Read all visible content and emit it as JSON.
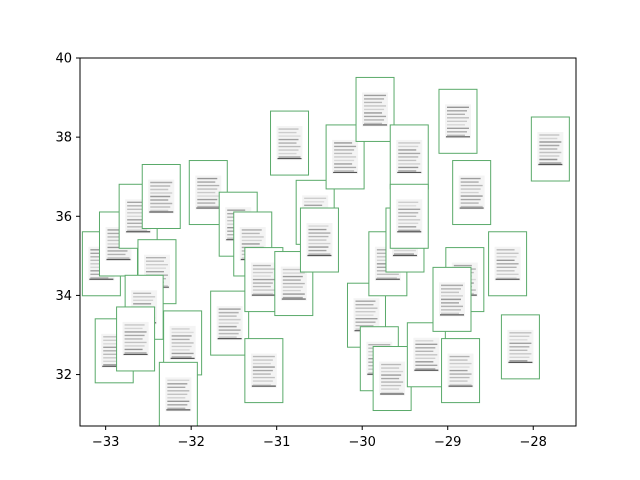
{
  "chart_data": {
    "type": "scatter",
    "title": "",
    "xlabel": "",
    "ylabel": "",
    "xlim": [
      -33.3,
      -27.5
    ],
    "ylim": [
      30.7,
      40.0
    ],
    "grid": false,
    "legend": "none",
    "marker": "image-thumbnail",
    "marker_edge_color": "#5aaa6a",
    "x_ticks": [
      -33,
      -32,
      -31,
      -30,
      -29,
      -28
    ],
    "x_tick_labels": [
      "−33",
      "−32",
      "−31",
      "−30",
      "−29",
      "−28"
    ],
    "y_ticks": [
      32,
      34,
      36,
      38,
      40
    ],
    "y_tick_labels": [
      "32",
      "34",
      "36",
      "38",
      "40"
    ],
    "points": [
      {
        "x": -33.05,
        "y": 34.8
      },
      {
        "x": -32.85,
        "y": 35.3
      },
      {
        "x": -32.62,
        "y": 36.0
      },
      {
        "x": -32.35,
        "y": 36.5
      },
      {
        "x": -32.4,
        "y": 34.6
      },
      {
        "x": -32.55,
        "y": 33.7
      },
      {
        "x": -32.9,
        "y": 32.6
      },
      {
        "x": -32.65,
        "y": 32.9
      },
      {
        "x": -32.1,
        "y": 32.8
      },
      {
        "x": -32.15,
        "y": 31.5
      },
      {
        "x": -31.8,
        "y": 36.6
      },
      {
        "x": -31.45,
        "y": 35.8
      },
      {
        "x": -31.55,
        "y": 33.3
      },
      {
        "x": -31.28,
        "y": 35.3
      },
      {
        "x": -31.15,
        "y": 34.4
      },
      {
        "x": -31.15,
        "y": 32.1
      },
      {
        "x": -30.85,
        "y": 37.85
      },
      {
        "x": -30.8,
        "y": 34.3
      },
      {
        "x": -30.55,
        "y": 36.1
      },
      {
        "x": -30.5,
        "y": 35.4
      },
      {
        "x": -30.2,
        "y": 37.5
      },
      {
        "x": -29.85,
        "y": 38.7
      },
      {
        "x": -29.95,
        "y": 33.5
      },
      {
        "x": -29.7,
        "y": 34.8
      },
      {
        "x": -29.8,
        "y": 32.4
      },
      {
        "x": -29.65,
        "y": 31.9
      },
      {
        "x": -29.5,
        "y": 35.4
      },
      {
        "x": -29.45,
        "y": 37.5
      },
      {
        "x": -29.45,
        "y": 36.0
      },
      {
        "x": -29.25,
        "y": 32.5
      },
      {
        "x": -28.88,
        "y": 38.4
      },
      {
        "x": -28.72,
        "y": 36.6
      },
      {
        "x": -28.8,
        "y": 34.4
      },
      {
        "x": -28.95,
        "y": 33.9
      },
      {
        "x": -28.85,
        "y": 32.1
      },
      {
        "x": -28.3,
        "y": 34.8
      },
      {
        "x": -28.15,
        "y": 32.7
      },
      {
        "x": -27.8,
        "y": 37.7
      }
    ]
  }
}
